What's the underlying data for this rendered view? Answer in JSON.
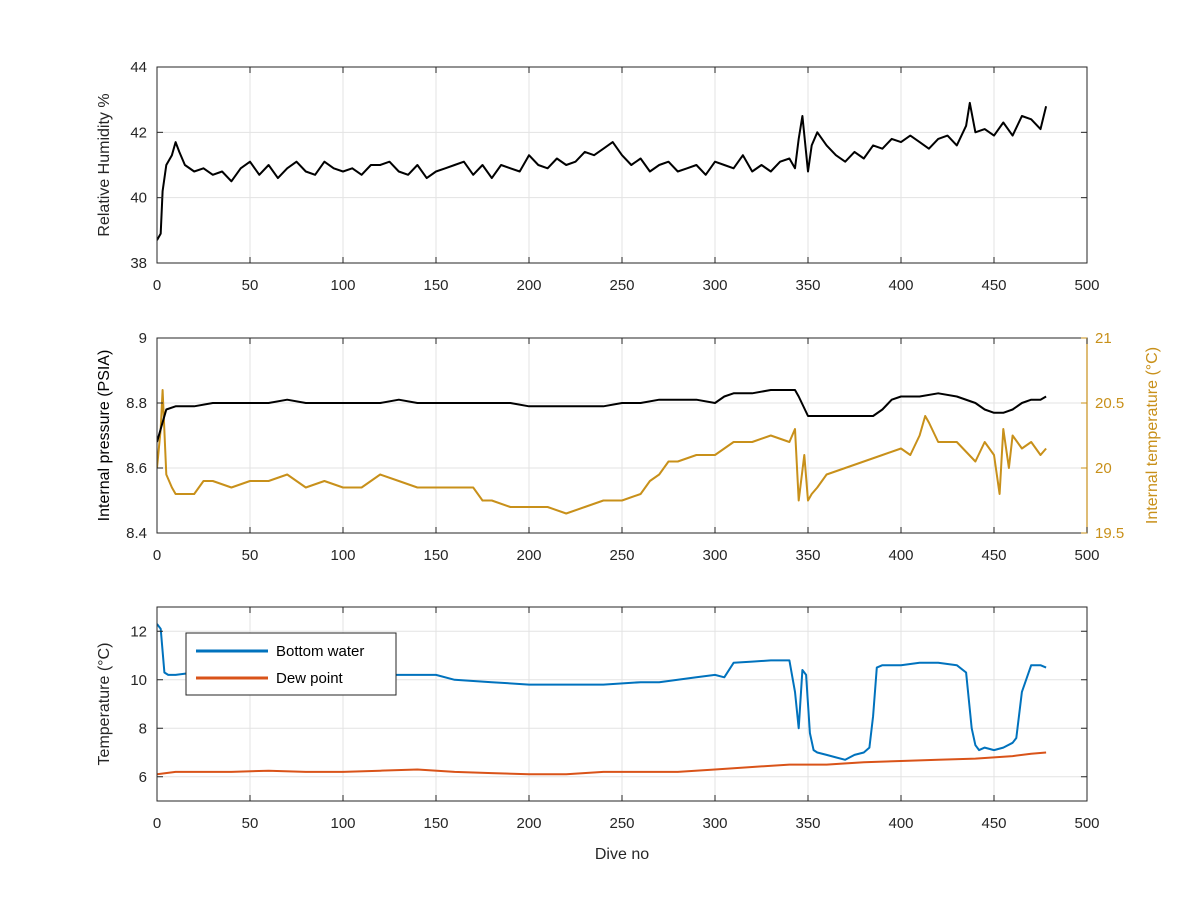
{
  "chart_data": [
    {
      "type": "line",
      "ylabel": "Relative Humidity %",
      "xlim": [
        0,
        500
      ],
      "ylim": [
        38,
        44
      ],
      "xticks": [
        0,
        50,
        100,
        150,
        200,
        250,
        300,
        350,
        400,
        450,
        500
      ],
      "yticks": [
        38,
        40,
        42,
        44
      ],
      "grid": true,
      "series": [
        {
          "color": "#000000",
          "x": [
            0,
            2,
            3,
            5,
            8,
            10,
            12,
            15,
            20,
            25,
            30,
            35,
            40,
            45,
            50,
            55,
            60,
            65,
            70,
            75,
            80,
            85,
            90,
            95,
            100,
            105,
            110,
            115,
            120,
            125,
            130,
            135,
            140,
            145,
            150,
            155,
            160,
            165,
            170,
            175,
            180,
            185,
            190,
            195,
            200,
            205,
            210,
            215,
            220,
            225,
            230,
            235,
            240,
            245,
            250,
            255,
            260,
            265,
            270,
            275,
            280,
            285,
            290,
            295,
            300,
            305,
            310,
            315,
            320,
            325,
            330,
            335,
            340,
            343,
            345,
            347,
            350,
            352,
            355,
            360,
            365,
            370,
            375,
            380,
            385,
            390,
            395,
            400,
            405,
            410,
            415,
            420,
            425,
            430,
            435,
            437,
            440,
            445,
            450,
            455,
            460,
            465,
            470,
            475,
            478
          ],
          "y": [
            38.7,
            38.9,
            40.2,
            41.0,
            41.3,
            41.7,
            41.4,
            41.0,
            40.8,
            40.9,
            40.7,
            40.8,
            40.5,
            40.9,
            41.1,
            40.7,
            41.0,
            40.6,
            40.9,
            41.1,
            40.8,
            40.7,
            41.1,
            40.9,
            40.8,
            40.9,
            40.7,
            41.0,
            41.0,
            41.1,
            40.8,
            40.7,
            41.0,
            40.6,
            40.8,
            40.9,
            41.0,
            41.1,
            40.7,
            41.0,
            40.6,
            41.0,
            40.9,
            40.8,
            41.3,
            41.0,
            40.9,
            41.2,
            41.0,
            41.1,
            41.4,
            41.3,
            41.5,
            41.7,
            41.3,
            41.0,
            41.2,
            40.8,
            41.0,
            41.1,
            40.8,
            40.9,
            41.0,
            40.7,
            41.1,
            41.0,
            40.9,
            41.3,
            40.8,
            41.0,
            40.8,
            41.1,
            41.2,
            40.9,
            41.8,
            42.5,
            40.8,
            41.6,
            42.0,
            41.6,
            41.3,
            41.1,
            41.4,
            41.2,
            41.6,
            41.5,
            41.8,
            41.7,
            41.9,
            41.7,
            41.5,
            41.8,
            41.9,
            41.6,
            42.2,
            42.9,
            42.0,
            42.1,
            41.9,
            42.3,
            41.9,
            42.5,
            42.4,
            42.1,
            42.8
          ]
        }
      ]
    },
    {
      "type": "line",
      "ylabel": "Internal pressure (PSIA)",
      "y2label": "Internal temperature (°C)",
      "xlim": [
        0,
        500
      ],
      "ylim": [
        8.4,
        9
      ],
      "y2lim": [
        19.5,
        21
      ],
      "xticks": [
        0,
        50,
        100,
        150,
        200,
        250,
        300,
        350,
        400,
        450,
        500
      ],
      "yticks": [
        8.4,
        8.6,
        8.8,
        9
      ],
      "y2ticks": [
        19.5,
        20,
        20.5,
        21
      ],
      "grid": true,
      "series": [
        {
          "axis": "left",
          "color": "#000000",
          "x": [
            0,
            2,
            5,
            10,
            15,
            20,
            30,
            40,
            50,
            60,
            70,
            80,
            90,
            100,
            110,
            120,
            130,
            140,
            150,
            160,
            170,
            180,
            190,
            200,
            210,
            220,
            230,
            240,
            250,
            260,
            270,
            280,
            290,
            300,
            305,
            310,
            320,
            330,
            340,
            343,
            345,
            350,
            355,
            360,
            370,
            380,
            385,
            390,
            395,
            400,
            410,
            420,
            430,
            440,
            445,
            450,
            455,
            460,
            465,
            470,
            475,
            478
          ],
          "y": [
            8.68,
            8.72,
            8.78,
            8.79,
            8.79,
            8.79,
            8.8,
            8.8,
            8.8,
            8.8,
            8.81,
            8.8,
            8.8,
            8.8,
            8.8,
            8.8,
            8.81,
            8.8,
            8.8,
            8.8,
            8.8,
            8.8,
            8.8,
            8.79,
            8.79,
            8.79,
            8.79,
            8.79,
            8.8,
            8.8,
            8.81,
            8.81,
            8.81,
            8.8,
            8.82,
            8.83,
            8.83,
            8.84,
            8.84,
            8.84,
            8.82,
            8.76,
            8.76,
            8.76,
            8.76,
            8.76,
            8.76,
            8.78,
            8.81,
            8.82,
            8.82,
            8.83,
            8.82,
            8.8,
            8.78,
            8.77,
            8.77,
            8.78,
            8.8,
            8.81,
            8.81,
            8.82
          ]
        },
        {
          "axis": "right",
          "color": "#C8901A",
          "x": [
            0,
            2,
            3,
            5,
            8,
            10,
            15,
            20,
            25,
            30,
            40,
            50,
            60,
            70,
            80,
            90,
            100,
            110,
            120,
            130,
            140,
            150,
            160,
            170,
            175,
            180,
            190,
            200,
            210,
            220,
            230,
            240,
            250,
            260,
            265,
            270,
            275,
            280,
            290,
            300,
            305,
            310,
            320,
            330,
            340,
            343,
            345,
            348,
            350,
            352,
            355,
            360,
            370,
            380,
            390,
            400,
            405,
            410,
            413,
            415,
            420,
            425,
            430,
            440,
            445,
            450,
            453,
            455,
            458,
            460,
            465,
            470,
            475,
            478
          ],
          "y": [
            20.0,
            20.3,
            20.6,
            19.95,
            19.85,
            19.8,
            19.8,
            19.8,
            19.9,
            19.9,
            19.85,
            19.9,
            19.9,
            19.95,
            19.85,
            19.9,
            19.85,
            19.85,
            19.95,
            19.9,
            19.85,
            19.85,
            19.85,
            19.85,
            19.75,
            19.75,
            19.7,
            19.7,
            19.7,
            19.65,
            19.7,
            19.75,
            19.75,
            19.8,
            19.9,
            19.95,
            20.05,
            20.05,
            20.1,
            20.1,
            20.15,
            20.2,
            20.2,
            20.25,
            20.2,
            20.3,
            19.75,
            20.1,
            19.75,
            19.8,
            19.85,
            19.95,
            20.0,
            20.05,
            20.1,
            20.15,
            20.1,
            20.25,
            20.4,
            20.35,
            20.2,
            20.2,
            20.2,
            20.05,
            20.2,
            20.1,
            19.8,
            20.3,
            20.0,
            20.25,
            20.15,
            20.2,
            20.1,
            20.15
          ]
        }
      ]
    },
    {
      "type": "line",
      "xlabel": "Dive no",
      "ylabel": "Temperature (°C)",
      "xlim": [
        0,
        500
      ],
      "ylim": [
        5,
        13
      ],
      "xticks": [
        0,
        50,
        100,
        150,
        200,
        250,
        300,
        350,
        400,
        450,
        500
      ],
      "yticks": [
        6,
        8,
        10,
        12
      ],
      "grid": true,
      "legend": "top-left",
      "series": [
        {
          "name": "Bottom water",
          "color": "#0072BD",
          "x": [
            0,
            2,
            4,
            6,
            10,
            20,
            40,
            60,
            80,
            100,
            120,
            140,
            150,
            160,
            180,
            200,
            210,
            220,
            240,
            260,
            270,
            280,
            290,
            300,
            305,
            310,
            320,
            330,
            340,
            343,
            345,
            347,
            349,
            351,
            353,
            355,
            360,
            365,
            370,
            375,
            380,
            383,
            385,
            387,
            390,
            395,
            400,
            410,
            420,
            430,
            435,
            438,
            440,
            442,
            445,
            450,
            455,
            460,
            462,
            465,
            470,
            475,
            478
          ],
          "y": [
            12.3,
            12.1,
            10.3,
            10.2,
            10.2,
            10.3,
            10.2,
            10.3,
            10.4,
            10.3,
            10.2,
            10.2,
            10.2,
            10.0,
            9.9,
            9.8,
            9.8,
            9.8,
            9.8,
            9.9,
            9.9,
            10.0,
            10.1,
            10.2,
            10.1,
            10.7,
            10.75,
            10.8,
            10.8,
            9.5,
            8.0,
            10.4,
            10.2,
            7.8,
            7.1,
            7.0,
            6.9,
            6.8,
            6.7,
            6.9,
            7.0,
            7.2,
            8.5,
            10.5,
            10.6,
            10.6,
            10.6,
            10.7,
            10.7,
            10.6,
            10.3,
            8.0,
            7.3,
            7.1,
            7.2,
            7.1,
            7.2,
            7.4,
            7.6,
            9.5,
            10.6,
            10.6,
            10.5
          ]
        },
        {
          "name": "Dew point",
          "color": "#D95319",
          "x": [
            0,
            10,
            20,
            40,
            60,
            80,
            100,
            120,
            140,
            160,
            180,
            200,
            220,
            240,
            260,
            280,
            300,
            320,
            340,
            360,
            380,
            400,
            420,
            440,
            460,
            470,
            478
          ],
          "y": [
            6.1,
            6.2,
            6.2,
            6.2,
            6.25,
            6.2,
            6.2,
            6.25,
            6.3,
            6.2,
            6.15,
            6.1,
            6.1,
            6.2,
            6.2,
            6.2,
            6.3,
            6.4,
            6.5,
            6.5,
            6.6,
            6.65,
            6.7,
            6.75,
            6.85,
            6.95,
            7.0
          ]
        }
      ]
    }
  ]
}
